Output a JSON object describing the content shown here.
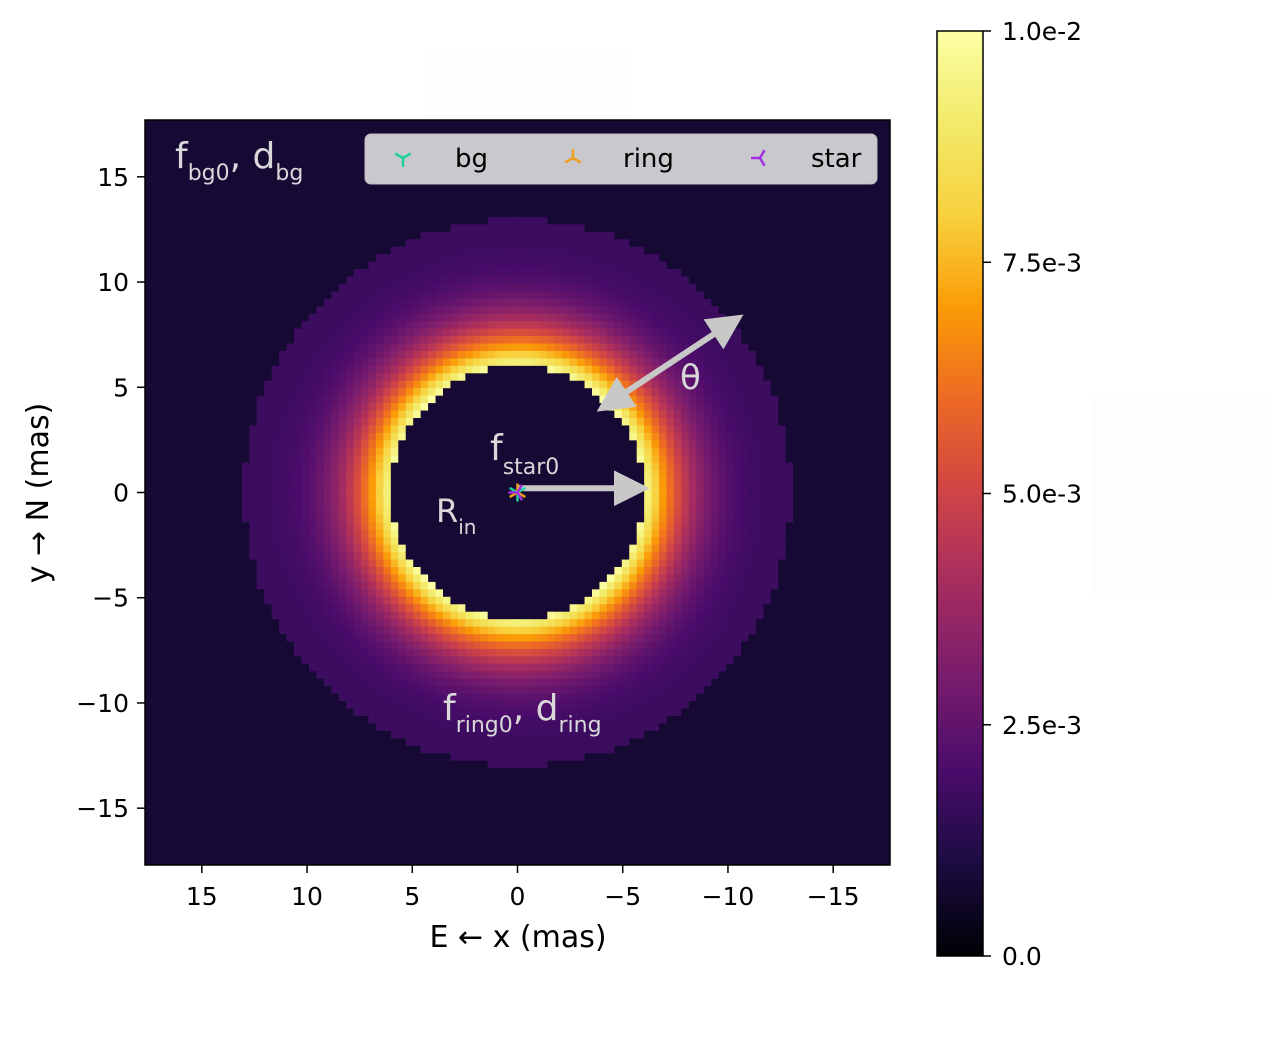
{
  "chart_data": {
    "type": "heatmap",
    "title": "",
    "xlabel": "E ← x (mas)",
    "ylabel": "y → N (mas)",
    "xlim": [
      17.7,
      -17.7
    ],
    "ylim": [
      -17.7,
      17.7
    ],
    "x_ticks": [
      15,
      10,
      5,
      0,
      -5,
      -10,
      -15
    ],
    "y_ticks": [
      15,
      10,
      5,
      0,
      -5,
      -10,
      -15
    ],
    "x_tick_labels": [
      "15",
      "10",
      "5",
      "0",
      "−5",
      "−10",
      "−15"
    ],
    "y_tick_labels": [
      "15",
      "10",
      "5",
      "0",
      "−5",
      "−10",
      "−15"
    ],
    "colormap": "inferno",
    "colorbar": {
      "vmin": 0.0,
      "vmax": 0.01,
      "ticks": [
        0.0,
        0.0025,
        0.005,
        0.0075,
        0.01
      ],
      "tick_labels": [
        "0.0",
        "2.5e-3",
        "5.0e-3",
        "7.5e-3",
        "1.0e-2"
      ]
    },
    "model": {
      "ring_inner_radius_mas": 6.0,
      "ring_outer_radius_mas": 13.0,
      "ring_peak_intensity": 0.01,
      "ring_outer_edge_intensity": 0.0017,
      "inner_disc_intensity": 0.0008,
      "background_intensity": 0.0008
    },
    "legend": {
      "placement": "top-right",
      "entries": [
        {
          "label": "bg",
          "color": "#1fd1a0",
          "marker": "tri_down"
        },
        {
          "label": "ring",
          "color": "#f0a020",
          "marker": "tri_up"
        },
        {
          "label": "star",
          "color": "#a030e0",
          "marker": "tri_left"
        }
      ]
    },
    "annotations": {
      "bg": {
        "text": "f",
        "sub": "bg0",
        "sep": ", d",
        "sub2": "bg"
      },
      "ring": {
        "text": "f",
        "sub": "ring0",
        "sep": ", d",
        "sub2": "ring"
      },
      "star": {
        "text": "f",
        "sub": "star0"
      },
      "rin": {
        "text": "R",
        "sub": "in"
      },
      "theta": {
        "text": "θ"
      }
    },
    "arrows": [
      {
        "name": "r-in-arrow",
        "from": [
          0,
          0.2
        ],
        "to": [
          -6,
          0.2
        ],
        "color": "#c8c8c8"
      },
      {
        "name": "theta-arrow",
        "from": [
          -4,
          4
        ],
        "to": [
          -10.5,
          8.3
        ],
        "color": "#c8c8c8",
        "double_headed": true
      }
    ],
    "star_marker": {
      "x": 0,
      "y": 0
    }
  }
}
